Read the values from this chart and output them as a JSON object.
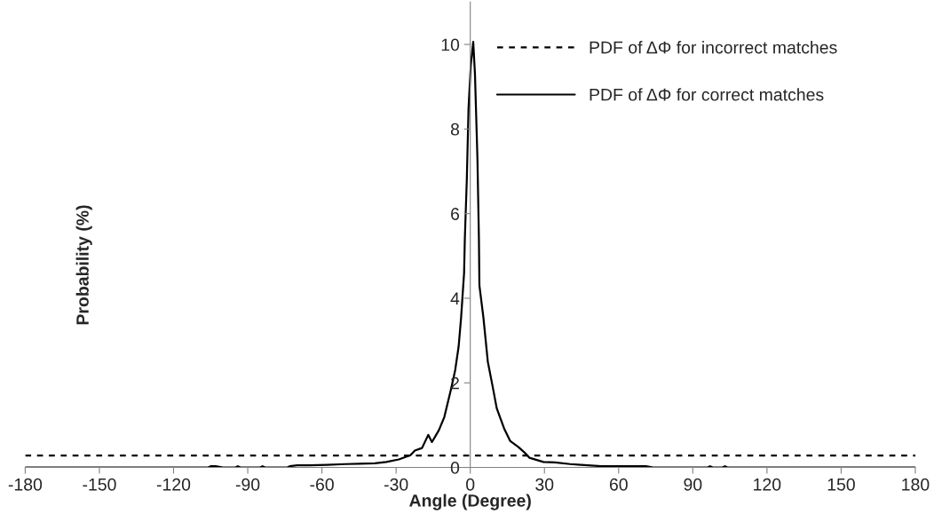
{
  "chart_data": {
    "type": "line",
    "xlabel": "Angle (Degree)",
    "ylabel": "Probability (%)",
    "xlim": [
      -180,
      180
    ],
    "xticks": [
      -180,
      -150,
      -120,
      -90,
      -60,
      -30,
      0,
      30,
      60,
      90,
      120,
      150,
      180
    ],
    "ylim": [
      0,
      11
    ],
    "yticks": [
      0,
      2,
      4,
      6,
      8,
      10
    ],
    "grid": false,
    "legend": "top right",
    "marker": "none",
    "series": [
      {
        "name": "PDF of ΔΦ for incorrect matches",
        "color": "#000000",
        "line_style": "dashed",
        "x": [
          -180,
          180
        ],
        "values": [
          0.28,
          0.28
        ]
      },
      {
        "name": "PDF of ΔΦ for correct matches",
        "color": "#000000",
        "line_style": "solid",
        "x": [
          -180,
          -106,
          -105,
          -103,
          -100,
          -95,
          -94,
          -93,
          -85,
          -84,
          -83,
          -74,
          -73,
          -70,
          -65,
          -58,
          -50.5,
          -45,
          -38.6,
          -34,
          -28.9,
          -24.2,
          -22.4,
          -19.5,
          -17,
          -15.5,
          -12.7,
          -10.5,
          -7.9,
          -6.1,
          -4.7,
          -3.7,
          -2.5,
          -2.2,
          -1.4,
          -0.7,
          0.2,
          1.2,
          1.9,
          2.9,
          3.5,
          3.7,
          5.3,
          7.1,
          8.9,
          10.7,
          13.7,
          16.1,
          19.5,
          22,
          23.9,
          29.6,
          34.3,
          40.4,
          44.8,
          53,
          60,
          71,
          74,
          96,
          97,
          98,
          102,
          103,
          104,
          180
        ],
        "values": [
          0,
          0,
          0.03,
          0.03,
          0,
          0,
          0.03,
          0,
          0,
          0.03,
          0,
          0,
          0.03,
          0.05,
          0.05,
          0.06,
          0.08,
          0.09,
          0.1,
          0.13,
          0.19,
          0.29,
          0.4,
          0.46,
          0.77,
          0.6,
          0.88,
          1.19,
          1.82,
          2.3,
          2.86,
          3.55,
          4.6,
          5.4,
          6.8,
          8.5,
          9.5,
          10.06,
          9.3,
          7.3,
          5.4,
          4.3,
          3.55,
          2.5,
          1.96,
          1.4,
          0.92,
          0.63,
          0.48,
          0.35,
          0.23,
          0.13,
          0.12,
          0.08,
          0.06,
          0.03,
          0.03,
          0.03,
          0,
          0,
          0.03,
          0,
          0,
          0.03,
          0,
          0
        ]
      }
    ]
  }
}
